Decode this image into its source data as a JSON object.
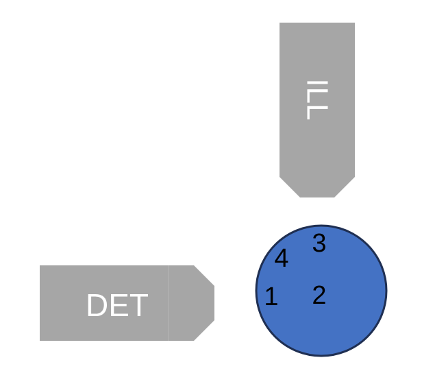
{
  "colors": {
    "arrow_fill": "#a6a6a6",
    "arrow_text": "#ffffff",
    "circle_fill": "#4472c4",
    "circle_stroke": "#1f2f52",
    "circle_text": "#000000",
    "background": "#ffffff"
  },
  "illumination_arrow": {
    "label": "ILL",
    "direction": "down"
  },
  "detection_arrow": {
    "label": "DET",
    "direction": "right"
  },
  "sample": {
    "positions": [
      "1",
      "2",
      "3",
      "4"
    ]
  }
}
